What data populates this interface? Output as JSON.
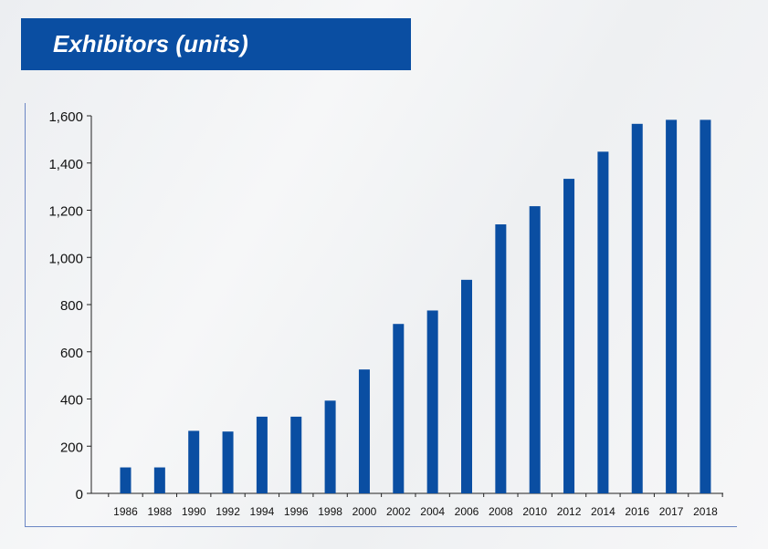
{
  "title": "Exhibitors (units)",
  "chart_data": {
    "type": "bar",
    "categories": [
      "1986",
      "1988",
      "1990",
      "1992",
      "1994",
      "1996",
      "1998",
      "2000",
      "2002",
      "2004",
      "2006",
      "2008",
      "2010",
      "2012",
      "2014",
      "2016",
      "2017",
      "2018"
    ],
    "values": [
      110,
      110,
      265,
      262,
      325,
      325,
      393,
      525,
      718,
      775,
      905,
      1140,
      1217,
      1333,
      1448,
      1566,
      1583,
      1583
    ],
    "ylim": [
      0,
      1600
    ],
    "yticks": [
      0,
      200,
      400,
      600,
      800,
      1000,
      1200,
      1400,
      1600
    ],
    "ytick_labels": [
      "0",
      "200",
      "400",
      "600",
      "800",
      "1,000",
      "1,200",
      "1,400",
      "1,600"
    ],
    "bar_color": "#0a4ea2",
    "xlabel": "",
    "ylabel": "",
    "grid": false,
    "legend": "none"
  }
}
